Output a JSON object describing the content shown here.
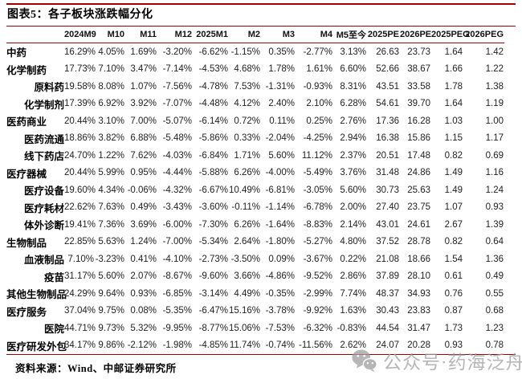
{
  "title": "图表5：各子板块涨跌幅分化",
  "table": {
    "columns": [
      "2024M9",
      "M10",
      "M11",
      "M12",
      "2025M1",
      "M2",
      "M3",
      "M4",
      "M5至今",
      "2025PE",
      "2026PE",
      "2025PEG",
      "2026PEG"
    ],
    "rows": [
      {
        "label": "中药",
        "indent": false,
        "values": [
          "16.29%",
          "4.05%",
          "1.69%",
          "-3.20%",
          "-6.62%",
          "-1.15%",
          "0.35%",
          "-2.77%",
          "3.13%",
          "26.63",
          "23.73",
          "1.64",
          "1.42"
        ]
      },
      {
        "label": "化学制药",
        "indent": false,
        "values": [
          "17.73%",
          "7.10%",
          "3.47%",
          "-7.14%",
          "-4.53%",
          "4.68%",
          "1.78%",
          "1.61%",
          "6.60%",
          "52.66",
          "38.67",
          "1.66",
          "1.22"
        ]
      },
      {
        "label": "原料药",
        "indent": true,
        "values": [
          "19.58%",
          "8.08%",
          "1.07%",
          "-7.56%",
          "-4.78%",
          "7.53%",
          "-1.31%",
          "-0.93%",
          "8.31%",
          "43.51",
          "33.58",
          "1.78",
          "1.38"
        ]
      },
      {
        "label": "化学制剂",
        "indent": true,
        "values": [
          "17.39%",
          "6.92%",
          "3.92%",
          "-7.07%",
          "-4.48%",
          "4.12%",
          "2.40%",
          "2.10%",
          "6.28%",
          "54.61",
          "39.70",
          "1.64",
          "1.19"
        ]
      },
      {
        "label": "医药商业",
        "indent": false,
        "values": [
          "20.44%",
          "3.10%",
          "7.00%",
          "-5.07%",
          "-6.14%",
          "0.72%",
          "0.11%",
          "0.25%",
          "2.76%",
          "17.36",
          "16.28",
          "1.03",
          "1.00"
        ]
      },
      {
        "label": "医药流通",
        "indent": true,
        "values": [
          "18.86%",
          "3.82%",
          "6.88%",
          "-5.48%",
          "-5.86%",
          "0.33%",
          "-2.04%",
          "-4.25%",
          "2.94%",
          "16.38",
          "15.86",
          "1.15",
          "1.17"
        ]
      },
      {
        "label": "线下药店",
        "indent": true,
        "values": [
          "24.70%",
          "1.22%",
          "7.62%",
          "-4.03%",
          "-6.84%",
          "1.71%",
          "5.60%",
          "11.12%",
          "2.37%",
          "20.51",
          "17.48",
          "0.82",
          "0.69"
        ]
      },
      {
        "label": "医疗器械",
        "indent": false,
        "values": [
          "20.44%",
          "5.99%",
          "0.95%",
          "-4.44%",
          "-5.88%",
          "6.26%",
          "-4.00%",
          "-5.49%",
          "3.76%",
          "31.48",
          "24.86",
          "1.49",
          "1.16"
        ]
      },
      {
        "label": "医疗设备",
        "indent": true,
        "values": [
          "19.60%",
          "4.34%",
          "-0.06%",
          "-4.32%",
          "-6.67%",
          "10.49%",
          "-6.81%",
          "-3.05%",
          "5.60%",
          "30.73",
          "25.63",
          "1.49",
          "1.24"
        ]
      },
      {
        "label": "医疗耗材",
        "indent": true,
        "values": [
          "22.62%",
          "7.63%",
          "0.49%",
          "-3.43%",
          "-3.60%",
          "-0.11%",
          "-1.14%",
          "-6.78%",
          "2.00%",
          "27.40",
          "23.75",
          "1.07",
          "0.93"
        ]
      },
      {
        "label": "体外诊断",
        "indent": true,
        "values": [
          "19.41%",
          "7.36%",
          "3.69%",
          "-6.00%",
          "-7.30%",
          "6.26%",
          "-1.64%",
          "-8.83%",
          "2.14%",
          "43.01",
          "24.61",
          "2.67",
          "1.39"
        ]
      },
      {
        "label": "生物制品",
        "indent": false,
        "values": [
          "22.85%",
          "5.63%",
          "1.24%",
          "-7.00%",
          "-5.34%",
          "2.64%",
          "-1.80%",
          "-5.27%",
          "4.80%",
          "37.52",
          "28.78",
          "0.82",
          "0.64"
        ]
      },
      {
        "label": "血液制品",
        "indent": true,
        "values": [
          "7.10%",
          "-3.23%",
          "0.41%",
          "-4.10%",
          "-2.73%",
          "-3.50%",
          "0.09%",
          "-3.67%",
          "0.22%",
          "21.08",
          "18.66",
          "1.54",
          "1.36"
        ]
      },
      {
        "label": "疫苗",
        "indent": true,
        "values": [
          "31.17%",
          "5.60%",
          "2.07%",
          "-8.67%",
          "-9.60%",
          "3.66%",
          "-4.86%",
          "-9.52%",
          "2.86%",
          "37.89",
          "28.10",
          "0.61",
          "0.49"
        ]
      },
      {
        "label": "其他生物制品",
        "indent": true,
        "values": [
          "24.29%",
          "9.64%",
          "0.93%",
          "-6.85%",
          "-3.14%",
          "4.49%",
          "-0.35%",
          "-2.99%",
          "7.74%",
          "48.37",
          "34.93",
          "0.76",
          "0.55"
        ]
      },
      {
        "label": "医疗服务",
        "indent": false,
        "values": [
          "37.04%",
          "9.75%",
          "0.08%",
          "-5.35%",
          "-6.47%",
          "15.16%",
          "-3.78%",
          "-9.92%",
          "1.63%",
          "30.43",
          "23.83",
          "0.87",
          "0.68"
        ]
      },
      {
        "label": "医院",
        "indent": true,
        "values": [
          "44.71%",
          "9.73%",
          "5.32%",
          "-9.95%",
          "-8.77%",
          "15.06%",
          "-7.53%",
          "-6.32%",
          "-0.83%",
          "44.54",
          "31.47",
          "1.73",
          "1.23"
        ]
      },
      {
        "label": "医疗研发外包",
        "indent": true,
        "values": [
          "34.17%",
          "9.86%",
          "-2.12%",
          "-1.98%",
          "-4.85%",
          "11.74%",
          "-0.74%",
          "-11.56%",
          "2.62%",
          "24.07",
          "20.28",
          "0.93",
          "0.78"
        ]
      }
    ]
  },
  "source_note": "资料来源：Wind、中邮证券研究所",
  "watermark": {
    "icon": "wechat-icon",
    "text": "公众号·药海泛舟"
  },
  "colors": {
    "accent_red": "#A30000",
    "watermark_gray": "#9E9E9E",
    "text_black": "#1A1A1A"
  }
}
